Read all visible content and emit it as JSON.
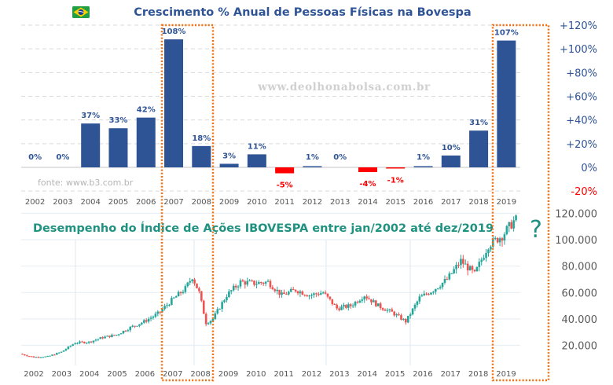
{
  "colors": {
    "bar_positive": "#2f5496",
    "bar_negative": "#ff0000",
    "label_positive": "#2f5496",
    "label_negative": "#ff0000",
    "candle_up": "#26a69a",
    "candle_down": "#ef5350",
    "highlight_box": "#f07014",
    "title_top": "#2f5496",
    "title_bottom": "#1f9180"
  },
  "header": {
    "flag_icon": "brazil-flag-icon",
    "watermark": "www.deolhonabolsa.com.br",
    "source": "fonte: www.b3.com.br",
    "question_mark": "?"
  },
  "highlights": [
    "2007-2008",
    "2019"
  ],
  "chart_data": [
    {
      "type": "bar",
      "title": "Crescimento % Anual de Pessoas Físicas na Bovespa",
      "xlabel": "",
      "ylabel": "",
      "categories": [
        "2002",
        "2003",
        "2004",
        "2005",
        "2006",
        "2007",
        "2008",
        "2009",
        "2010",
        "2011",
        "2012",
        "2013",
        "2014",
        "2015",
        "2016",
        "2017",
        "2018",
        "2019"
      ],
      "values": [
        0,
        0,
        37,
        33,
        42,
        108,
        18,
        3,
        11,
        -5,
        1,
        0,
        -4,
        -1,
        1,
        10,
        31,
        107
      ],
      "data_labels": [
        "0%",
        "0%",
        "37%",
        "33%",
        "42%",
        "108%",
        "18%",
        "3%",
        "11%",
        "-5%",
        "1%",
        "0%",
        "-4%",
        "-1%",
        "1%",
        "10%",
        "31%",
        "107%"
      ],
      "ylim": [
        -20,
        120
      ],
      "yticks": [
        -20,
        0,
        20,
        40,
        60,
        80,
        100,
        120
      ],
      "ytick_labels": [
        "-20%",
        "0%",
        "+20%",
        "+40%",
        "+60%",
        "+80%",
        "+100%",
        "+120%"
      ],
      "y_axis_side": "right",
      "grid": true
    },
    {
      "type": "candlestick",
      "title": "Desempenho do Índice de Ações IBOVESPA entre jan/2002 até dez/2019",
      "xlabel": "",
      "ylabel": "",
      "x_tick_labels": [
        "2002",
        "2003",
        "2004",
        "2005",
        "2006",
        "2007",
        "2008",
        "2009",
        "2010",
        "2011",
        "2012",
        "2013",
        "2014",
        "2015",
        "2016",
        "2017",
        "2018",
        "2019"
      ],
      "ylim": [
        0,
        120000
      ],
      "yticks": [
        20000,
        40000,
        60000,
        80000,
        100000,
        120000
      ],
      "ytick_labels": [
        "20.000",
        "40.000",
        "60.000",
        "80.000",
        "100.000",
        "120.000"
      ],
      "y_axis_side": "right",
      "grid": true,
      "approx_close_by_period": {
        "x": [
          2002.0,
          2002.5,
          2003.0,
          2003.5,
          2004.0,
          2004.5,
          2005.0,
          2005.5,
          2006.0,
          2006.5,
          2007.0,
          2007.5,
          2008.0,
          2008.25,
          2008.5,
          2008.75,
          2009.0,
          2009.5,
          2010.0,
          2010.5,
          2011.0,
          2011.5,
          2012.0,
          2012.5,
          2013.0,
          2013.5,
          2014.0,
          2014.5,
          2015.0,
          2015.5,
          2016.0,
          2016.5,
          2017.0,
          2017.5,
          2018.0,
          2018.5,
          2019.0,
          2019.5,
          2019.95
        ],
        "close": [
          13500,
          11000,
          11500,
          15000,
          22000,
          22500,
          26000,
          28000,
          33500,
          38000,
          44000,
          54000,
          63000,
          72000,
          60000,
          37000,
          40000,
          58000,
          68000,
          67000,
          68000,
          58000,
          62000,
          58000,
          60000,
          48000,
          50000,
          58000,
          50000,
          45000,
          38000,
          56000,
          62000,
          70000,
          84000,
          74000,
          96000,
          103000,
          115000
        ]
      }
    }
  ]
}
